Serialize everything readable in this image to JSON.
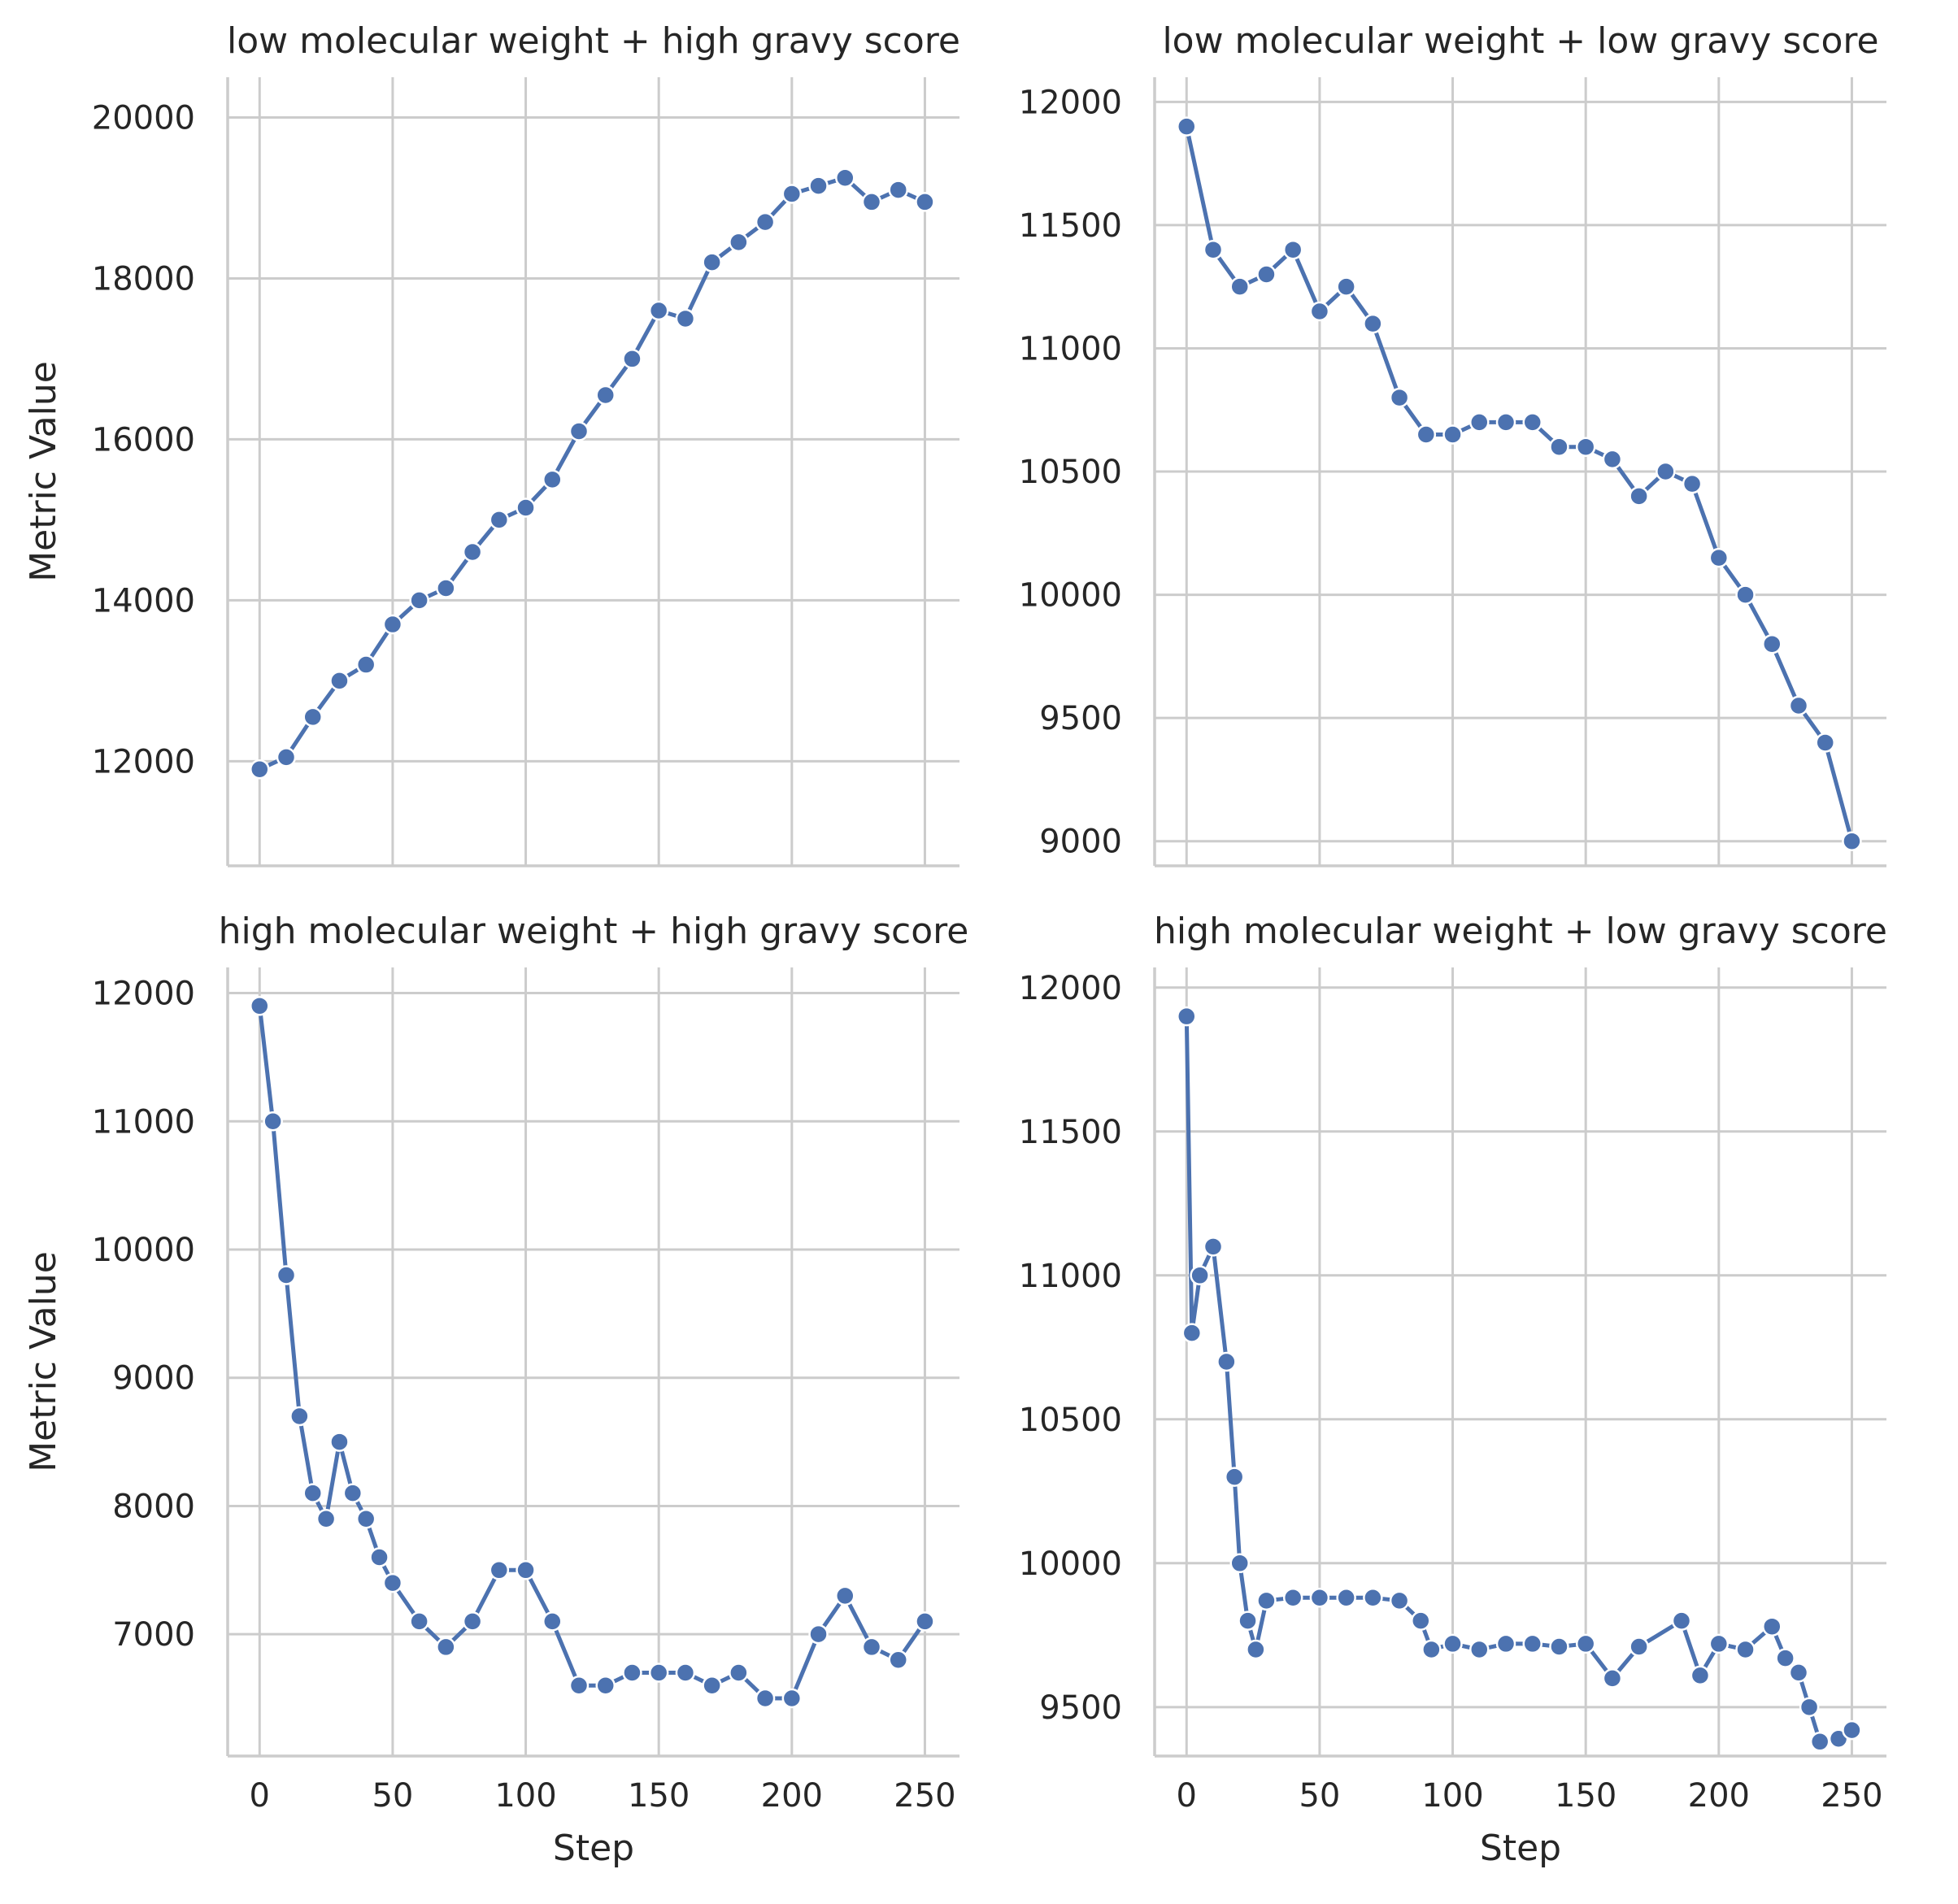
{
  "figure": {
    "shared_xlabel": "Step",
    "shared_ylabel": "Metric Value",
    "line_color": "#4c72b0",
    "grid_color": "#cccccc",
    "background": "#ffffff"
  },
  "chart_data": [
    {
      "type": "line",
      "title": "low molecular weight + high gravy score",
      "xlabel": "",
      "ylabel": "Metric Value",
      "xlim": [
        -12,
        263
      ],
      "ylim": [
        10700,
        20500
      ],
      "xticks": [
        0,
        50,
        100,
        150,
        200,
        250
      ],
      "xtick_labels": [
        "",
        "",
        "",
        "",
        "",
        ""
      ],
      "yticks": [
        12000,
        14000,
        16000,
        18000,
        20000
      ],
      "ytick_labels": [
        "12000",
        "14000",
        "16000",
        "18000",
        "20000"
      ],
      "grid": true,
      "marker": "circle",
      "x": [
        0,
        10,
        20,
        30,
        40,
        50,
        60,
        70,
        80,
        90,
        100,
        110,
        120,
        130,
        140,
        150,
        160,
        170,
        180,
        190,
        200,
        210,
        220,
        230,
        240,
        250
      ],
      "y": [
        11900,
        12050,
        12550,
        13000,
        13200,
        13700,
        14000,
        14150,
        14600,
        15000,
        15150,
        15500,
        16100,
        16550,
        17000,
        17600,
        17500,
        18200,
        18450,
        18700,
        19050,
        19150,
        19250,
        18950,
        19100,
        18950
      ]
    },
    {
      "type": "line",
      "title": "low molecular weight + low gravy score",
      "xlabel": "",
      "ylabel": "",
      "xlim": [
        -12,
        263
      ],
      "ylim": [
        8900,
        12100
      ],
      "xticks": [
        0,
        50,
        100,
        150,
        200,
        250
      ],
      "xtick_labels": [
        "",
        "",
        "",
        "",
        "",
        ""
      ],
      "yticks": [
        9000,
        9500,
        10000,
        10500,
        11000,
        11500,
        12000
      ],
      "ytick_labels": [
        "9000",
        "9500",
        "10000",
        "10500",
        "11000",
        "11500",
        "12000"
      ],
      "grid": true,
      "marker": "circle",
      "x": [
        0,
        10,
        20,
        30,
        40,
        50,
        60,
        70,
        80,
        90,
        100,
        110,
        120,
        130,
        140,
        150,
        160,
        170,
        180,
        190,
        200,
        210,
        220,
        230,
        240,
        250
      ],
      "y": [
        11900,
        11400,
        11250,
        11300,
        11400,
        11150,
        11250,
        11100,
        10800,
        10650,
        10650,
        10700,
        10700,
        10700,
        10600,
        10600,
        10550,
        10400,
        10500,
        10450,
        10150,
        10000,
        9800,
        9550,
        9400,
        9000
      ]
    },
    {
      "type": "line",
      "title": "high molecular weight + high gravy score",
      "xlabel": "Step",
      "ylabel": "Metric Value",
      "xlim": [
        -12,
        263
      ],
      "ylim": [
        6050,
        12200
      ],
      "xticks": [
        0,
        50,
        100,
        150,
        200,
        250
      ],
      "xtick_labels": [
        "0",
        "50",
        "100",
        "150",
        "200",
        "250"
      ],
      "yticks": [
        7000,
        8000,
        9000,
        10000,
        11000,
        12000
      ],
      "ytick_labels": [
        "7000",
        "8000",
        "9000",
        "10000",
        "11000",
        "12000"
      ],
      "grid": true,
      "marker": "circle",
      "x": [
        0,
        5,
        10,
        15,
        20,
        25,
        30,
        35,
        40,
        45,
        50,
        60,
        70,
        80,
        90,
        100,
        110,
        120,
        130,
        140,
        150,
        160,
        170,
        180,
        190,
        200,
        210,
        220,
        230,
        240,
        250
      ],
      "y": [
        11900,
        11000,
        9800,
        8700,
        8100,
        7900,
        8500,
        8100,
        7900,
        7600,
        7400,
        7100,
        6900,
        7100,
        7500,
        7500,
        7100,
        6600,
        6600,
        6700,
        6700,
        6700,
        6600,
        6700,
        6500,
        6500,
        7000,
        7300,
        6900,
        6800,
        7100
      ]
    },
    {
      "type": "line",
      "title": "high molecular weight + low gravy score",
      "xlabel": "Step",
      "ylabel": "",
      "xlim": [
        -12,
        263
      ],
      "ylim": [
        9330,
        12070
      ],
      "xticks": [
        0,
        50,
        100,
        150,
        200,
        250
      ],
      "xtick_labels": [
        "0",
        "50",
        "100",
        "150",
        "200",
        "250"
      ],
      "yticks": [
        9500,
        10000,
        10500,
        11000,
        11500,
        12000
      ],
      "ytick_labels": [
        "9500",
        "10000",
        "10500",
        "11000",
        "11500",
        "12000"
      ],
      "grid": true,
      "marker": "circle",
      "x": [
        0,
        2,
        5,
        10,
        15,
        18,
        20,
        23,
        26,
        30,
        40,
        50,
        60,
        70,
        80,
        88,
        92,
        100,
        110,
        120,
        130,
        140,
        150,
        160,
        170,
        186,
        193,
        200,
        210,
        220,
        225,
        230,
        234,
        238,
        245,
        250
      ],
      "y": [
        11900,
        10800,
        11000,
        11100,
        10700,
        10300,
        10000,
        9800,
        9700,
        9870,
        9880,
        9880,
        9880,
        9880,
        9870,
        9800,
        9700,
        9720,
        9700,
        9720,
        9720,
        9710,
        9720,
        9600,
        9710,
        9800,
        9610,
        9720,
        9700,
        9780,
        9670,
        9620,
        9500,
        9380,
        9390,
        9420
      ]
    }
  ]
}
